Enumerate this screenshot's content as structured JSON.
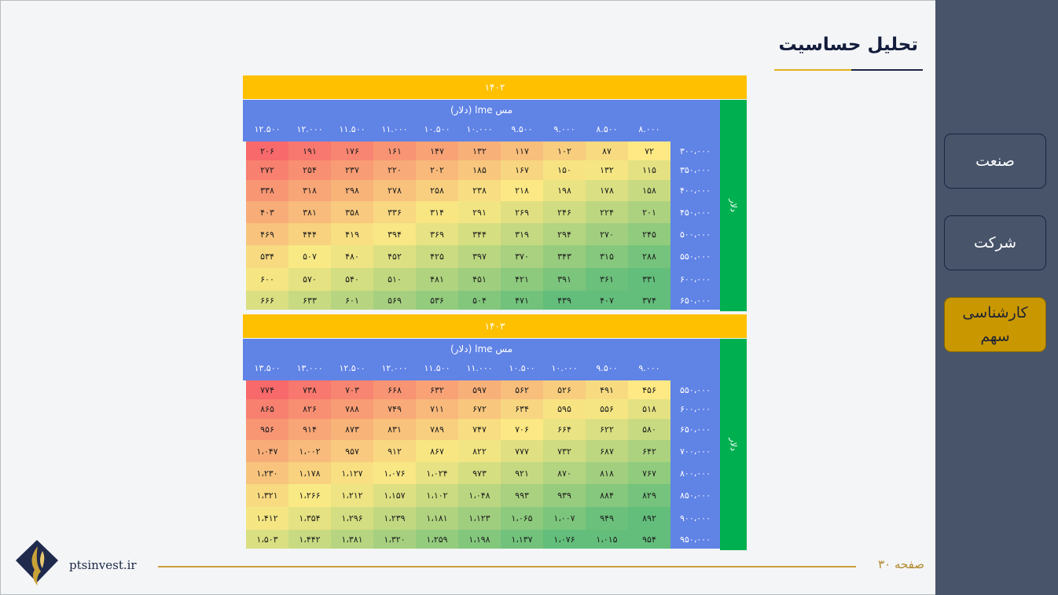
{
  "page": {
    "title": "تحلیل حساسیت",
    "site": "ptsinvest.ir",
    "page_label": "صفحه ۳۰",
    "accent_gold": "#ffc000",
    "header_blue": "#6083e6",
    "side_green": "#00b050"
  },
  "nav": {
    "industry": "صنعت",
    "company": "شرکت",
    "stock_line1": "کارشناسی",
    "stock_line2": "سهم"
  },
  "tables": [
    {
      "year": "۱۴۰۲",
      "subtitle": "مس lme (دلار)",
      "side_label": "دلار",
      "columns": [
        "۸.۰۰۰",
        "۸.۵۰۰",
        "۹.۰۰۰",
        "۹.۵۰۰",
        "۱۰.۰۰۰",
        "۱۰.۵۰۰",
        "۱۱.۰۰۰",
        "۱۱.۵۰۰",
        "۱۲.۰۰۰",
        "۱۲.۵۰۰"
      ],
      "rows": [
        {
          "label": "۳۰۰،۰۰۰",
          "values": [
            "۷۲",
            "۸۷",
            "۱۰۲",
            "۱۱۷",
            "۱۳۲",
            "۱۴۷",
            "۱۶۱",
            "۱۷۶",
            "۱۹۱",
            "۲۰۶"
          ]
        },
        {
          "label": "۳۵۰،۰۰۰",
          "values": [
            "۱۱۵",
            "۱۳۲",
            "۱۵۰",
            "۱۶۷",
            "۱۸۵",
            "۲۰۲",
            "۲۲۰",
            "۲۳۷",
            "۲۵۴",
            "۲۷۲"
          ]
        },
        {
          "label": "۴۰۰،۰۰۰",
          "values": [
            "۱۵۸",
            "۱۷۸",
            "۱۹۸",
            "۲۱۸",
            "۲۳۸",
            "۲۵۸",
            "۲۷۸",
            "۲۹۸",
            "۳۱۸",
            "۳۳۸"
          ]
        },
        {
          "label": "۴۵۰،۰۰۰",
          "values": [
            "۲۰۱",
            "۲۲۴",
            "۲۴۶",
            "۲۶۹",
            "۲۹۱",
            "۳۱۴",
            "۳۳۶",
            "۳۵۸",
            "۳۸۱",
            "۴۰۳"
          ]
        },
        {
          "label": "۵۰۰،۰۰۰",
          "values": [
            "۲۴۵",
            "۲۷۰",
            "۲۹۴",
            "۳۱۹",
            "۳۴۴",
            "۳۶۹",
            "۳۹۴",
            "۴۱۹",
            "۴۴۴",
            "۴۶۹"
          ]
        },
        {
          "label": "۵۵۰،۰۰۰",
          "values": [
            "۲۸۸",
            "۳۱۵",
            "۳۴۳",
            "۳۷۰",
            "۳۹۷",
            "۴۲۵",
            "۴۵۲",
            "۴۸۰",
            "۵۰۷",
            "۵۳۴"
          ]
        },
        {
          "label": "۶۰۰،۰۰۰",
          "values": [
            "۳۳۱",
            "۳۶۱",
            "۳۹۱",
            "۴۲۱",
            "۴۵۱",
            "۴۸۱",
            "۵۱۰",
            "۵۴۰",
            "۵۷۰",
            "۶۰۰"
          ]
        },
        {
          "label": "۶۵۰،۰۰۰",
          "values": [
            "۳۷۴",
            "۴۰۷",
            "۴۳۹",
            "۴۷۱",
            "۵۰۴",
            "۵۳۶",
            "۵۶۹",
            "۶۰۱",
            "۶۳۳",
            "۶۶۶"
          ]
        }
      ]
    },
    {
      "year": "۱۴۰۳",
      "subtitle": "مس lme (دلار)",
      "side_label": "دلار",
      "columns": [
        "۹.۰۰۰",
        "۹.۵۰۰",
        "۱۰.۰۰۰",
        "۱۰.۵۰۰",
        "۱۱.۰۰۰",
        "۱۱.۵۰۰",
        "۱۲.۰۰۰",
        "۱۲.۵۰۰",
        "۱۳.۰۰۰",
        "۱۳.۵۰۰"
      ],
      "rows": [
        {
          "label": "۵۵۰،۰۰۰",
          "values": [
            "۴۵۶",
            "۴۹۱",
            "۵۲۶",
            "۵۶۲",
            "۵۹۷",
            "۶۳۲",
            "۶۶۸",
            "۷۰۳",
            "۷۳۸",
            "۷۷۴"
          ]
        },
        {
          "label": "۶۰۰،۰۰۰",
          "values": [
            "۵۱۸",
            "۵۵۶",
            "۵۹۵",
            "۶۳۴",
            "۶۷۲",
            "۷۱۱",
            "۷۴۹",
            "۷۸۸",
            "۸۲۶",
            "۸۶۵"
          ]
        },
        {
          "label": "۶۵۰،۰۰۰",
          "values": [
            "۵۸۰",
            "۶۲۲",
            "۶۶۴",
            "۷۰۶",
            "۷۴۷",
            "۷۸۹",
            "۸۳۱",
            "۸۷۳",
            "۹۱۴",
            "۹۵۶"
          ]
        },
        {
          "label": "۷۰۰،۰۰۰",
          "values": [
            "۶۴۲",
            "۶۸۷",
            "۷۳۲",
            "۷۷۷",
            "۸۲۲",
            "۸۶۷",
            "۹۱۲",
            "۹۵۷",
            "۱،۰۰۲",
            "۱،۰۴۷"
          ]
        },
        {
          "label": "۸۰۰،۰۰۰",
          "values": [
            "۷۶۷",
            "۸۱۸",
            "۸۷۰",
            "۹۲۱",
            "۹۷۳",
            "۱،۰۲۴",
            "۱،۰۷۶",
            "۱،۱۲۷",
            "۱،۱۷۸",
            "۱،۲۳۰"
          ]
        },
        {
          "label": "۸۵۰،۰۰۰",
          "values": [
            "۸۲۹",
            "۸۸۴",
            "۹۳۹",
            "۹۹۳",
            "۱،۰۴۸",
            "۱،۱۰۲",
            "۱،۱۵۷",
            "۱،۲۱۲",
            "۱،۲۶۶",
            "۱،۳۲۱"
          ]
        },
        {
          "label": "۹۰۰،۰۰۰",
          "values": [
            "۸۹۲",
            "۹۴۹",
            "۱،۰۰۷",
            "۱،۰۶۵",
            "۱،۱۲۳",
            "۱،۱۸۱",
            "۱،۲۳۹",
            "۱،۲۹۶",
            "۱،۳۵۴",
            "۱،۴۱۲"
          ]
        },
        {
          "label": "۹۵۰،۰۰۰",
          "values": [
            "۹۵۴",
            "۱،۰۱۵",
            "۱،۰۷۶",
            "۱،۱۳۷",
            "۱،۱۹۸",
            "۱،۲۵۹",
            "۱،۳۲۰",
            "۱،۳۸۱",
            "۱،۴۴۲",
            "۱،۵۰۳"
          ]
        }
      ]
    }
  ]
}
